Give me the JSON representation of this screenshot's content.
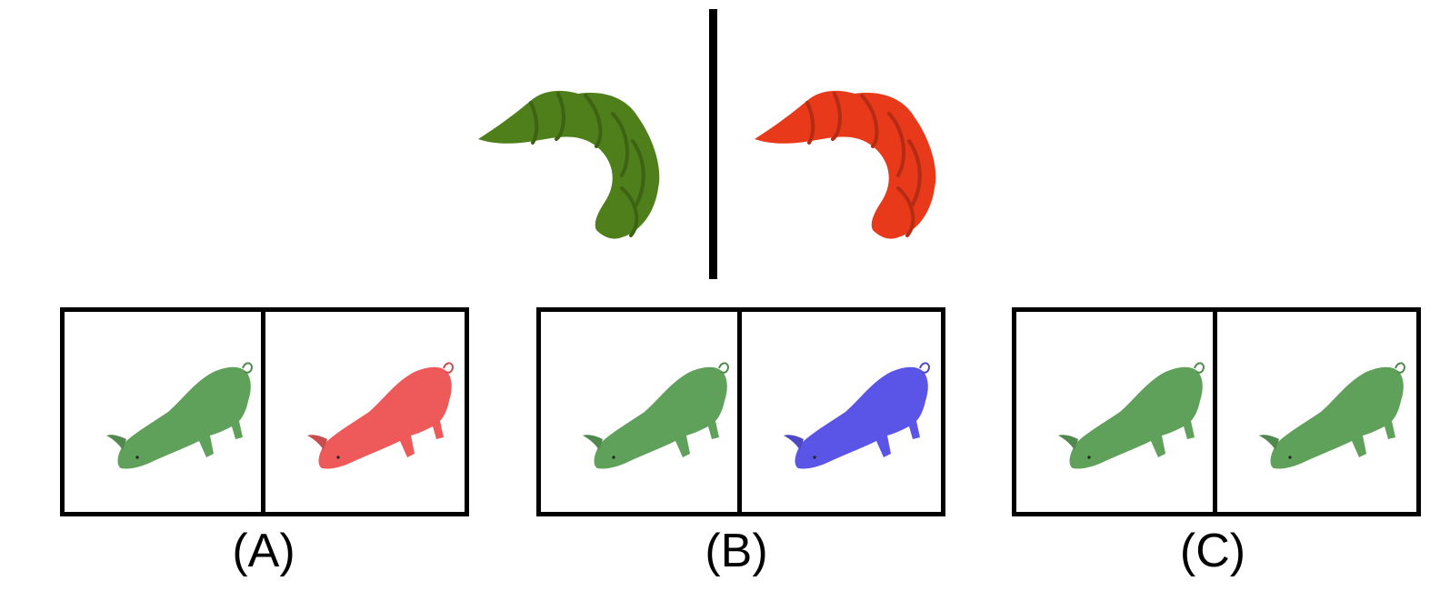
{
  "prompt": {
    "left_object": "croissant-icon",
    "left_color": "#4f7f1a",
    "right_object": "croissant-icon",
    "right_color": "#e8391a"
  },
  "options": [
    {
      "label": "(A)",
      "left_icon": "pig-icon",
      "left_color": "#5fa05a",
      "right_icon": "pig-icon",
      "right_color": "#ee5a5a"
    },
    {
      "label": "(B)",
      "left_icon": "pig-icon",
      "left_color": "#5fa05a",
      "right_icon": "pig-icon",
      "right_color": "#5a55e6"
    },
    {
      "label": "(C)",
      "left_icon": "pig-icon",
      "left_color": "#5fa05a",
      "right_icon": "pig-icon",
      "right_color": "#5fa05a"
    }
  ]
}
